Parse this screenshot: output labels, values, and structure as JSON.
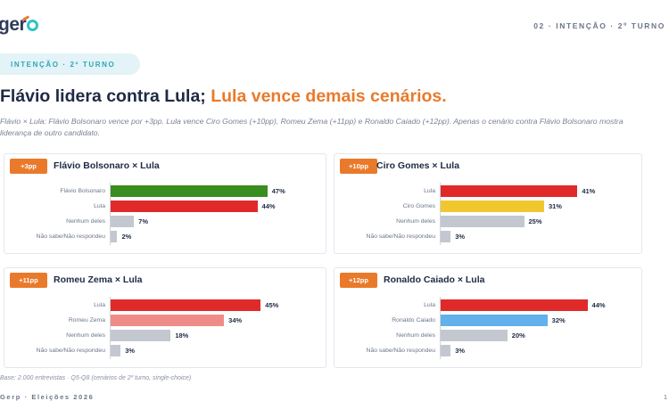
{
  "header": {
    "logo_text": "gerp",
    "section_tag": "02 · INTENÇÃO · 2º TURNO"
  },
  "pill": {
    "label": "INTENÇÃO · 2º TURNO"
  },
  "headline": {
    "part1": "Flávio lidera contra Lula; ",
    "part2": "Lula vence demais cenários."
  },
  "subtitle": "Flávio × Lula: Flávio Bolsonaro vence por +3pp. Lula vence Ciro Gomes (+10pp), Romeu Zema (+11pp) e Ronaldo Caiado (+12pp). Apenas o cenário contra Flávio Bolsonaro mostra liderança de outro candidato.",
  "colors": {
    "accent": "#e97a2b",
    "lula": "#e02a2a",
    "flavio": "#3a8e1f",
    "ciro": "#f1c72f",
    "zema": "#f08c87",
    "caiado": "#62b0ec",
    "nenhum": "#c3c7d0",
    "naosabe": "#c3c7d0"
  },
  "chart_data": [
    {
      "type": "bar",
      "title": "Flávio Bolsonaro × Lula",
      "badge": "+3pp",
      "categories": [
        "Flávio Bolsonaro",
        "Lula",
        "Nenhum deles",
        "Não sabe/Não respondeu"
      ],
      "values": [
        47,
        44,
        7,
        2
      ],
      "value_labels": [
        "47%",
        "44%",
        "7%",
        "2%"
      ],
      "colors": [
        "#3a8e1f",
        "#e02a2a",
        "#c3c7d0",
        "#c3c7d0"
      ],
      "xlim": [
        0,
        50
      ]
    },
    {
      "type": "bar",
      "title": "Ciro Gomes × Lula",
      "badge": "+10pp",
      "categories": [
        "Lula",
        "Ciro Gomes",
        "Nenhum deles",
        "Não sabe/Não respondeu"
      ],
      "values": [
        41,
        31,
        25,
        3
      ],
      "value_labels": [
        "41%",
        "31%",
        "25%",
        "3%"
      ],
      "colors": [
        "#e02a2a",
        "#f1c72f",
        "#c3c7d0",
        "#c3c7d0"
      ],
      "xlim": [
        0,
        50
      ]
    },
    {
      "type": "bar",
      "title": "Romeu Zema × Lula",
      "badge": "+11pp",
      "categories": [
        "Lula",
        "Romeu Zema",
        "Nenhum deles",
        "Não sabe/Não respondeu"
      ],
      "values": [
        45,
        34,
        18,
        3
      ],
      "value_labels": [
        "45%",
        "34%",
        "18%",
        "3%"
      ],
      "colors": [
        "#e02a2a",
        "#f08c87",
        "#c3c7d0",
        "#c3c7d0"
      ],
      "xlim": [
        0,
        50
      ]
    },
    {
      "type": "bar",
      "title": "Ronaldo Caiado × Lula",
      "badge": "+12pp",
      "categories": [
        "Lula",
        "Ronaldo Caiado",
        "Nenhum deles",
        "Não sabe/Não respondeu"
      ],
      "values": [
        44,
        32,
        20,
        3
      ],
      "value_labels": [
        "44%",
        "32%",
        "20%",
        "3%"
      ],
      "colors": [
        "#e02a2a",
        "#62b0ec",
        "#c3c7d0",
        "#c3c7d0"
      ],
      "xlim": [
        0,
        50
      ]
    }
  ],
  "footnote": "Base: 2.000 entrevistas · Q5-Q8 (cenários de 2º turno, single-choice)",
  "footer": {
    "left": "Gerp · Eleições 2026",
    "right": "1"
  }
}
